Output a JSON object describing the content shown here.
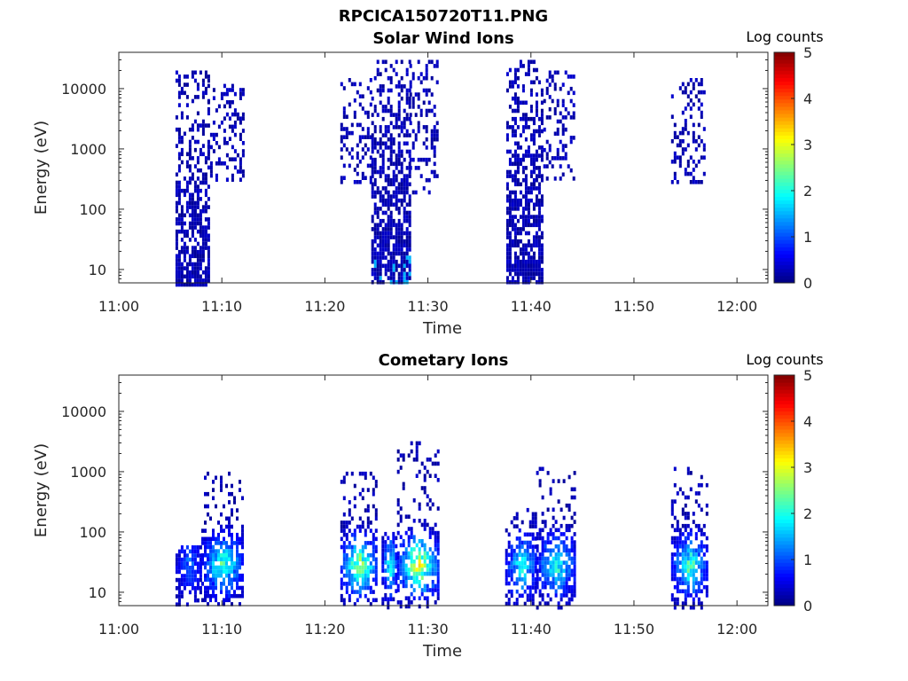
{
  "figure": {
    "title": "RPCICA150720T11.PNG"
  },
  "chart_data": [
    {
      "type": "heatmap",
      "title": "Solar Wind Ions",
      "xlabel": "Time",
      "ylabel": "Energy (eV)",
      "x_ticks": [
        "11:00",
        "11:10",
        "11:20",
        "11:30",
        "11:40",
        "11:50",
        "12:00"
      ],
      "xlim": [
        "11:00",
        "12:03"
      ],
      "y_ticks": [
        "10",
        "100",
        "1000",
        "10000"
      ],
      "y_scale": "log",
      "ylim": [
        6,
        40000
      ],
      "colorbar": {
        "label": "Log counts",
        "ticks": [
          "0",
          "1",
          "2",
          "3",
          "4",
          "5"
        ],
        "range": [
          0,
          5
        ],
        "colormap": "jet"
      },
      "regions": [
        {
          "t_start": "11:05.5",
          "t_end": "11:08.6",
          "e_min": 6,
          "e_max": 20000,
          "peak_log_counts": 0.4,
          "note": "dense column"
        },
        {
          "t_start": "11:08.6",
          "t_end": "11:12",
          "e_min": 300,
          "e_max": 12000,
          "peak_log_counts": 0.2,
          "note": "sparse"
        },
        {
          "t_start": "11:21.5",
          "t_end": "11:24.5",
          "e_min": 300,
          "e_max": 15000,
          "peak_log_counts": 0.2,
          "note": "sparse"
        },
        {
          "t_start": "11:24.5",
          "t_end": "11:28.2",
          "e_min": 6,
          "e_max": 30000,
          "peak_log_counts": 1.5,
          "note": "dense column"
        },
        {
          "t_start": "11:28.2",
          "t_end": "11:31",
          "e_min": 200,
          "e_max": 30000,
          "peak_log_counts": 0.2,
          "note": "sparse"
        },
        {
          "t_start": "11:37.6",
          "t_end": "11:41.2",
          "e_min": 6,
          "e_max": 30000,
          "peak_log_counts": 0.5,
          "note": "dense column"
        },
        {
          "t_start": "11:41.2",
          "t_end": "11:44.2",
          "e_min": 300,
          "e_max": 20000,
          "peak_log_counts": 0.2,
          "note": "sparse"
        },
        {
          "t_start": "11:53.6",
          "t_end": "11:56.8",
          "e_min": 300,
          "e_max": 15000,
          "peak_log_counts": 0.2,
          "note": "sparse"
        }
      ]
    },
    {
      "type": "heatmap",
      "title": "Cometary Ions",
      "xlabel": "Time",
      "ylabel": "Energy (eV)",
      "x_ticks": [
        "11:00",
        "11:10",
        "11:20",
        "11:30",
        "11:40",
        "11:50",
        "12:00"
      ],
      "xlim": [
        "11:00",
        "12:03"
      ],
      "y_ticks": [
        "10",
        "100",
        "1000",
        "10000"
      ],
      "y_scale": "log",
      "ylim": [
        6,
        40000
      ],
      "colorbar": {
        "label": "Log counts",
        "ticks": [
          "0",
          "1",
          "2",
          "3",
          "4",
          "5"
        ],
        "range": [
          0,
          5
        ],
        "colormap": "jet"
      },
      "regions": [
        {
          "t_start": "11:05.5",
          "t_end": "11:08",
          "e_min": 6,
          "e_max": 60,
          "peak_log_counts": 1.2,
          "note": "low-energy patch"
        },
        {
          "t_start": "11:08",
          "t_end": "11:12",
          "e_min": 6,
          "e_max": 1000,
          "peak_log_counts": 2.6,
          "note": "core near 20-40 eV"
        },
        {
          "t_start": "11:21.5",
          "t_end": "11:25",
          "e_min": 6,
          "e_max": 1000,
          "peak_log_counts": 3.2,
          "note": "core near 30 eV"
        },
        {
          "t_start": "11:25.5",
          "t_end": "11:27",
          "e_min": 6,
          "e_max": 100,
          "peak_log_counts": 2.4
        },
        {
          "t_start": "11:27",
          "t_end": "11:31",
          "e_min": 6,
          "e_max": 3200,
          "peak_log_counts": 3.6,
          "note": "core near 20 eV"
        },
        {
          "t_start": "11:37.5",
          "t_end": "11:40.5",
          "e_min": 6,
          "e_max": 250,
          "peak_log_counts": 2.2
        },
        {
          "t_start": "11:40.5",
          "t_end": "11:44.3",
          "e_min": 6,
          "e_max": 1200,
          "peak_log_counts": 2.4,
          "note": "core near 30-40 eV"
        },
        {
          "t_start": "11:53.6",
          "t_end": "11:57",
          "e_min": 6,
          "e_max": 1200,
          "peak_log_counts": 2.6,
          "note": "core near 20-40 eV"
        }
      ]
    }
  ]
}
